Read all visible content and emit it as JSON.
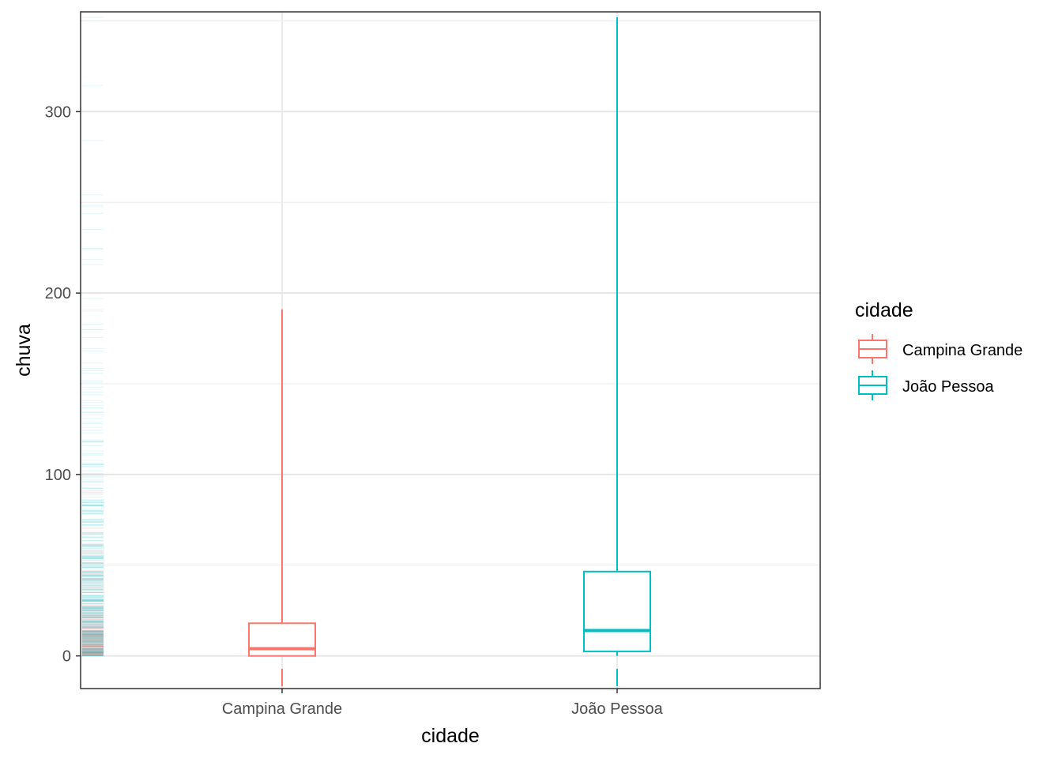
{
  "chart_data": {
    "type": "boxplot",
    "xlabel": "cidade",
    "ylabel": "chuva",
    "ylim": [
      -18,
      355
    ],
    "y_ticks": [
      0,
      100,
      200,
      300
    ],
    "grid": true,
    "theme": "bw",
    "legend": {
      "title": "cidade",
      "position": "right",
      "entries": [
        "Campina Grande",
        "João Pessoa"
      ]
    },
    "categories": [
      "Campina Grande",
      "João Pessoa"
    ],
    "series": [
      {
        "name": "Campina Grande",
        "color": "#F8766D",
        "min": 0,
        "q1": 0,
        "median": 4,
        "q3": 18,
        "max": 191,
        "rug_max": 191
      },
      {
        "name": "João Pessoa",
        "color": "#00BFC4",
        "min": 0,
        "q1": 2.5,
        "median": 14,
        "q3": 46.5,
        "max": 352,
        "rug_max": 352
      }
    ]
  }
}
